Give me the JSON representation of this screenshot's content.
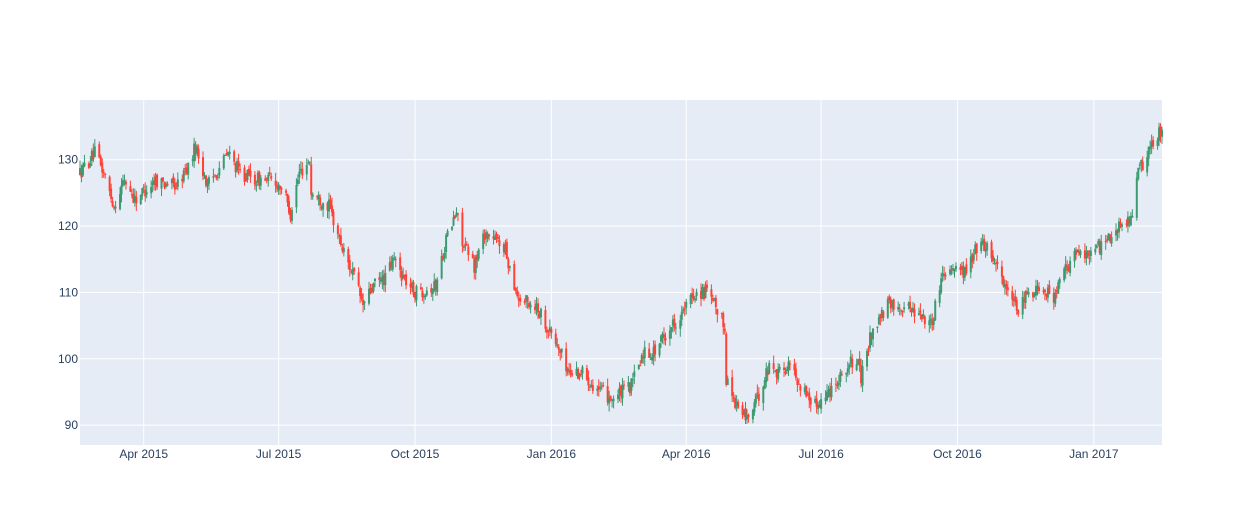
{
  "chart_data": {
    "type": "candlestick",
    "title": "",
    "xlabel": "",
    "ylabel": "",
    "x_range": [
      "2015-02-17",
      "2017-02-16"
    ],
    "ylim": [
      87,
      139
    ],
    "x_ticks": [
      {
        "date": "2015-04-01",
        "label": "Apr 2015"
      },
      {
        "date": "2015-07-01",
        "label": "Jul 2015"
      },
      {
        "date": "2015-10-01",
        "label": "Oct 2015"
      },
      {
        "date": "2016-01-01",
        "label": "Jan 2016"
      },
      {
        "date": "2016-04-01",
        "label": "Apr 2016"
      },
      {
        "date": "2016-07-01",
        "label": "Jul 2016"
      },
      {
        "date": "2016-10-01",
        "label": "Oct 2016"
      },
      {
        "date": "2017-01-01",
        "label": "Jan 2017"
      }
    ],
    "y_ticks": [
      90,
      100,
      110,
      120,
      130
    ],
    "grid": true,
    "colors": {
      "increasing": "#3d9970",
      "decreasing": "#ff4136",
      "plot_background": "#e5ecf6",
      "grid": "#ffffff",
      "tick_label": "#2a3f5f"
    },
    "anchors": [
      [
        "2015-02-17",
        128
      ],
      [
        "2015-02-27",
        131
      ],
      [
        "2015-03-05",
        128
      ],
      [
        "2015-03-12",
        123
      ],
      [
        "2015-03-19",
        127
      ],
      [
        "2015-03-26",
        124
      ],
      [
        "2015-04-09",
        127
      ],
      [
        "2015-04-23",
        126
      ],
      [
        "2015-05-01",
        129
      ],
      [
        "2015-05-06",
        132
      ],
      [
        "2015-05-14",
        126
      ],
      [
        "2015-05-28",
        131
      ],
      [
        "2015-06-05",
        128
      ],
      [
        "2015-06-15",
        127
      ],
      [
        "2015-06-25",
        127
      ],
      [
        "2015-07-03",
        126
      ],
      [
        "2015-07-09",
        122
      ],
      [
        "2015-07-15",
        128
      ],
      [
        "2015-07-22",
        130
      ],
      [
        "2015-07-23",
        125
      ],
      [
        "2015-08-04",
        123
      ],
      [
        "2015-08-14",
        116
      ],
      [
        "2015-08-20",
        113
      ],
      [
        "2015-08-27",
        108
      ],
      [
        "2015-09-03",
        111
      ],
      [
        "2015-09-10",
        112
      ],
      [
        "2015-09-17",
        115
      ],
      [
        "2015-09-24",
        112
      ],
      [
        "2015-10-01",
        110
      ],
      [
        "2015-10-15",
        111
      ],
      [
        "2015-10-22",
        118
      ],
      [
        "2015-10-29",
        122
      ],
      [
        "2015-11-03",
        117
      ],
      [
        "2015-11-10",
        114
      ],
      [
        "2015-11-17",
        119
      ],
      [
        "2015-11-30",
        117
      ],
      [
        "2015-12-10",
        109
      ],
      [
        "2015-12-22",
        108
      ],
      [
        "2016-01-05",
        102
      ],
      [
        "2016-01-13",
        98
      ],
      [
        "2016-01-22",
        98
      ],
      [
        "2016-02-03",
        95
      ],
      [
        "2016-02-12",
        94
      ],
      [
        "2016-02-24",
        96
      ],
      [
        "2016-03-03",
        101
      ],
      [
        "2016-03-10",
        101
      ],
      [
        "2016-03-22",
        105
      ],
      [
        "2016-03-30",
        107
      ],
      [
        "2016-04-07",
        110
      ],
      [
        "2016-04-15",
        110
      ],
      [
        "2016-04-22",
        107
      ],
      [
        "2016-04-27",
        105
      ],
      [
        "2016-04-28",
        97
      ],
      [
        "2016-05-05",
        93
      ],
      [
        "2016-05-12",
        91
      ],
      [
        "2016-05-19",
        94
      ],
      [
        "2016-05-27",
        99
      ],
      [
        "2016-06-03",
        98
      ],
      [
        "2016-06-10",
        99
      ],
      [
        "2016-06-17",
        96
      ],
      [
        "2016-06-27",
        93
      ],
      [
        "2016-07-06",
        95
      ],
      [
        "2016-07-15",
        98
      ],
      [
        "2016-07-25",
        100
      ],
      [
        "2016-07-28",
        97
      ],
      [
        "2016-08-04",
        104
      ],
      [
        "2016-08-15",
        108
      ],
      [
        "2016-08-25",
        108
      ],
      [
        "2016-09-06",
        107
      ],
      [
        "2016-09-13",
        105
      ],
      [
        "2016-09-21",
        113
      ],
      [
        "2016-09-28",
        114
      ],
      [
        "2016-10-07",
        113
      ],
      [
        "2016-10-14",
        117
      ],
      [
        "2016-10-21",
        117
      ],
      [
        "2016-10-28",
        114
      ],
      [
        "2016-11-04",
        110
      ],
      [
        "2016-11-10",
        107
      ],
      [
        "2016-11-18",
        110
      ],
      [
        "2016-11-28",
        111
      ],
      [
        "2016-12-05",
        109
      ],
      [
        "2016-12-12",
        113
      ],
      [
        "2016-12-21",
        116
      ],
      [
        "2016-12-30",
        116
      ],
      [
        "2017-01-06",
        117
      ],
      [
        "2017-01-13",
        119
      ],
      [
        "2017-01-20",
        120
      ],
      [
        "2017-01-26",
        121
      ],
      [
        "2017-01-31",
        128
      ],
      [
        "2017-02-07",
        131
      ],
      [
        "2017-02-16",
        135
      ]
    ]
  }
}
